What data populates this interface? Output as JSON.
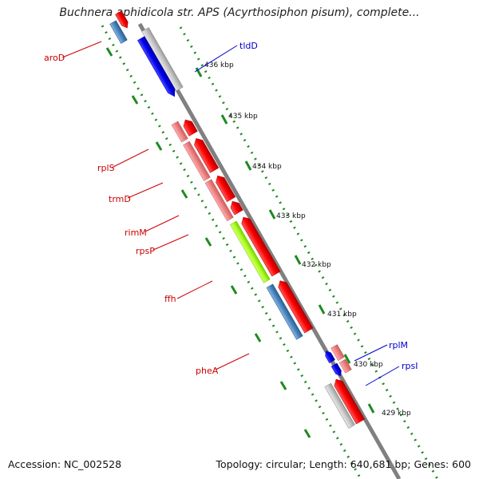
{
  "title": "Buchnera aphidicola str. APS (Acyrthosiphon pisum), complete...",
  "footer": {
    "accession": "Accession: NC_002528",
    "topology": "Topology: circular; Length: 640,681 bp; Genes: 600"
  },
  "colors": {
    "backbone": "#808080",
    "dots": "#1f8a1f",
    "label_red": "#cc0000",
    "label_blue": "#0000cc",
    "red": "#ff0000",
    "pink": "#f08080",
    "blue": "#0000ee",
    "steelblue": "#4a86c0",
    "grey": "#c8c8c8",
    "lime": "#aaff22"
  },
  "ticks": [
    "436 kbp",
    "435 kbp",
    "434 kbp",
    "433 kbp",
    "432 kbp",
    "431 kbp",
    "430 kbp",
    "429 kbp"
  ],
  "gene_labels": [
    {
      "text": "aroD",
      "color": "red"
    },
    {
      "text": "tldD",
      "color": "blue"
    },
    {
      "text": "rplS",
      "color": "red"
    },
    {
      "text": "trmD",
      "color": "red"
    },
    {
      "text": "rimM",
      "color": "red"
    },
    {
      "text": "rpsP",
      "color": "red"
    },
    {
      "text": "ffh",
      "color": "red"
    },
    {
      "text": "pheA",
      "color": "red"
    },
    {
      "text": "rplM",
      "color": "blue"
    },
    {
      "text": "rpsI",
      "color": "blue"
    }
  ]
}
